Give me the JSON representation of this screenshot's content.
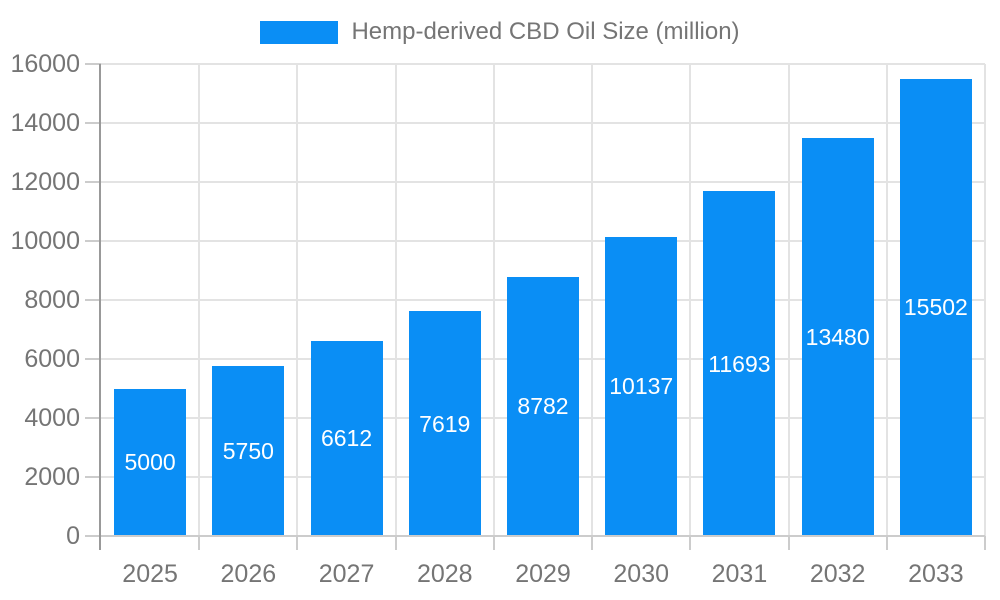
{
  "chart_data": {
    "type": "bar",
    "title": "Hemp-derived CBD Oil Size (million)",
    "categories": [
      "2025",
      "2026",
      "2027",
      "2028",
      "2029",
      "2030",
      "2031",
      "2032",
      "2033"
    ],
    "series": [
      {
        "name": "Hemp-derived CBD Oil Size (million)",
        "values": [
          5000,
          5750,
          6612,
          7619,
          8782,
          10137,
          11693,
          13480,
          15502
        ]
      }
    ],
    "value_labels": [
      5000,
      5750,
      6612,
      7619,
      8782,
      10137,
      11693,
      13480,
      15502
    ],
    "value_label_position": "center-of-bar",
    "xlabel": "",
    "ylabel": "",
    "ylim": [
      0,
      16000
    ],
    "yticks": [
      0,
      2000,
      4000,
      6000,
      8000,
      10000,
      12000,
      14000,
      16000
    ],
    "grid": true,
    "legend_position": "top-center",
    "colors": {
      "bar": "#0A8EF5",
      "gridline": "#e3e3e3",
      "y_axis_line": "#999999",
      "x_axis_line": "#cccccc",
      "tick": "#cccccc",
      "axis_text": "#757575",
      "legend_text": "#757575",
      "value_text": "#ffffff",
      "background": "#ffffff"
    }
  }
}
